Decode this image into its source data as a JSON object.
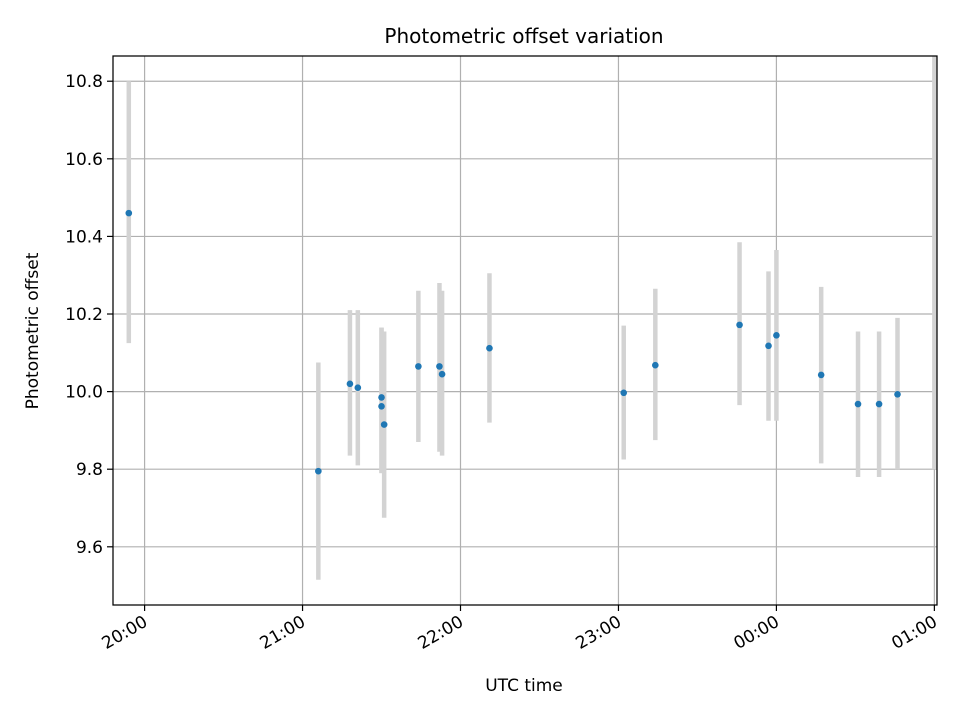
{
  "chart_data": {
    "type": "scatter",
    "title": "Photometric offset variation",
    "xlabel": "UTC time",
    "ylabel": "Photometric offset",
    "grid": true,
    "ylim": [
      9.45,
      10.865
    ],
    "xlim": [
      "19:48",
      "01:01"
    ],
    "x_ticks": [
      "20:00",
      "21:00",
      "22:00",
      "23:00",
      "00:00",
      "01:00"
    ],
    "y_ticks": [
      "9.6",
      "9.8",
      "10.0",
      "10.2",
      "10.4",
      "10.6",
      "10.8"
    ],
    "colors": {
      "point": "#1f77b4",
      "errorbar": "#d3d3d3",
      "grid": "#b0b0b0"
    },
    "points": [
      {
        "x": "19:54",
        "y": 10.46,
        "ylow": 10.125,
        "yhigh": 10.8
      },
      {
        "x": "21:06",
        "y": 9.795,
        "ylow": 9.515,
        "yhigh": 10.075
      },
      {
        "x": "21:18",
        "y": 10.02,
        "ylow": 9.835,
        "yhigh": 10.21
      },
      {
        "x": "21:21",
        "y": 10.01,
        "ylow": 9.81,
        "yhigh": 10.21
      },
      {
        "x": "21:30",
        "y": 9.985,
        "ylow": 9.79,
        "yhigh": 10.165
      },
      {
        "x": "21:30",
        "y": 9.962,
        "ylow": 9.79,
        "yhigh": 10.165
      },
      {
        "x": "21:31",
        "y": 9.915,
        "ylow": 9.675,
        "yhigh": 10.155
      },
      {
        "x": "21:44",
        "y": 10.065,
        "ylow": 9.87,
        "yhigh": 10.26
      },
      {
        "x": "21:52",
        "y": 10.065,
        "ylow": 9.845,
        "yhigh": 10.28
      },
      {
        "x": "21:53",
        "y": 10.045,
        "ylow": 9.835,
        "yhigh": 10.26
      },
      {
        "x": "22:11",
        "y": 10.112,
        "ylow": 9.92,
        "yhigh": 10.305
      },
      {
        "x": "23:02",
        "y": 9.997,
        "ylow": 9.825,
        "yhigh": 10.17
      },
      {
        "x": "23:14",
        "y": 10.068,
        "ylow": 9.875,
        "yhigh": 10.265
      },
      {
        "x": "23:46",
        "y": 10.172,
        "ylow": 9.965,
        "yhigh": 10.385
      },
      {
        "x": "23:57",
        "y": 10.118,
        "ylow": 9.925,
        "yhigh": 10.31
      },
      {
        "x": "00:00",
        "y": 10.145,
        "ylow": 9.925,
        "yhigh": 10.365
      },
      {
        "x": "00:17",
        "y": 10.043,
        "ylow": 9.815,
        "yhigh": 10.27
      },
      {
        "x": "00:31",
        "y": 9.968,
        "ylow": 9.78,
        "yhigh": 10.155
      },
      {
        "x": "00:39",
        "y": 9.968,
        "ylow": 9.78,
        "yhigh": 10.155
      },
      {
        "x": "00:46",
        "y": 9.993,
        "ylow": 9.8,
        "yhigh": 10.19
      },
      {
        "x": "01:00",
        "y": null,
        "ylow": 9.8,
        "yhigh": 10.865
      }
    ]
  }
}
